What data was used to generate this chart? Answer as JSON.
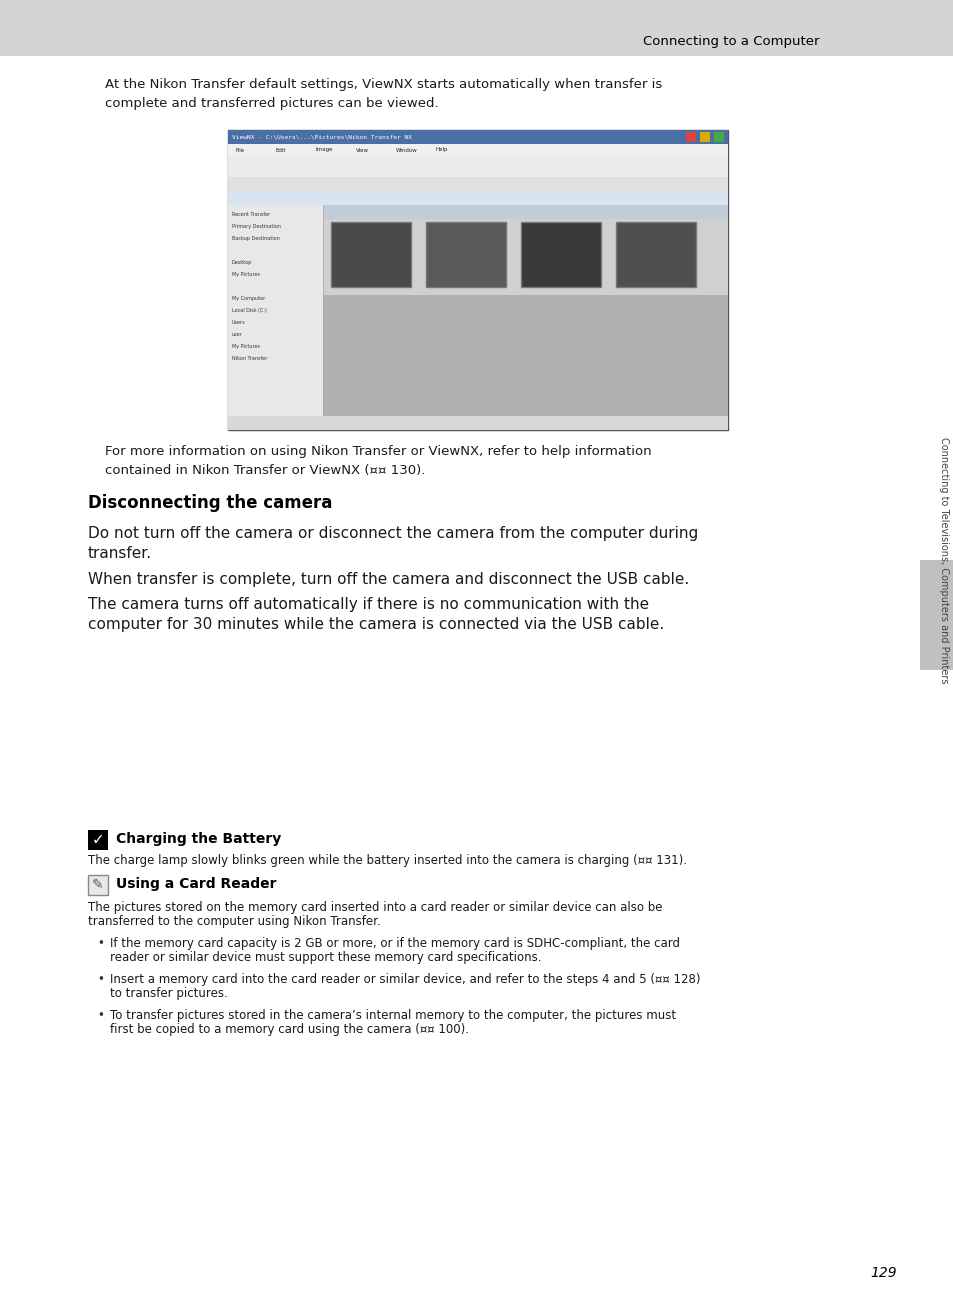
{
  "header_bg_color": "#d4d4d4",
  "header_text": "Connecting to a Computer",
  "page_bg_color": "#ffffff",
  "body_text_color": "#1a1a1a",
  "right_sidebar_text": "Connecting to Televisions, Computers and Printers",
  "page_number": "129",
  "intro_line1": "At the Nikon Transfer default settings, ViewNX starts automatically when transfer is",
  "intro_line2": "complete and transferred pictures can be viewed.",
  "for_more_line1": "For more information on using Nikon Transfer or ViewNX, refer to help information",
  "for_more_line2": "contained in Nikon Transfer or ViewNX (¤¤ 130).",
  "section_title": "Disconnecting the camera",
  "p1_line1": "Do not turn off the camera or disconnect the camera from the computer during",
  "p1_line2": "transfer.",
  "p2": "When transfer is complete, turn off the camera and disconnect the USB cable.",
  "p3_line1": "The camera turns off automatically if there is no communication with the",
  "p3_line2": "computer for 30 minutes while the camera is connected via the USB cable.",
  "note1_title": "Charging the Battery",
  "note1_body": "The charge lamp slowly blinks green while the battery inserted into the camera is charging (¤¤ 131).",
  "note2_title": "Using a Card Reader",
  "note2_body1": "The pictures stored on the memory card inserted into a card reader or similar device can also be",
  "note2_body2": "transferred to the computer using Nikon Transfer.",
  "b1_line1": "If the memory card capacity is 2 GB or more, or if the memory card is SDHC-compliant, the card",
  "b1_line2": "reader or similar device must support these memory card specifications.",
  "b2_line1": "Insert a memory card into the card reader or similar device, and refer to the steps 4 and 5 (¤¤ 128)",
  "b2_line2": "to transfer pictures.",
  "b3_line1": "To transfer pictures stored in the camera’s internal memory to the computer, the pictures must",
  "b3_line2": "first be copied to a memory card using the camera (¤¤ 100)."
}
